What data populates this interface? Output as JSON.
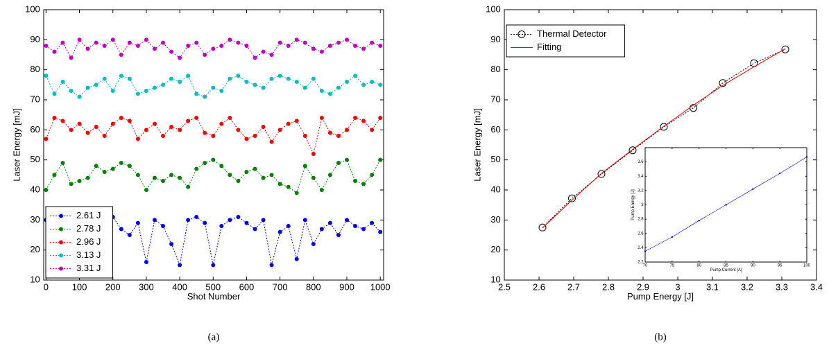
{
  "chart_data": [
    {
      "type": "line",
      "caption": "(a)",
      "x_label": "Shot Number",
      "y_label": "Laser Energy [mJ]",
      "xlim": [
        -7,
        1010
      ],
      "ylim": [
        10,
        100
      ],
      "xticks": [
        0,
        100,
        200,
        300,
        400,
        500,
        600,
        700,
        800,
        900,
        1000
      ],
      "yticks": [
        10,
        20,
        30,
        40,
        50,
        60,
        70,
        80,
        90,
        100
      ],
      "legend": "lower left",
      "x": [
        0,
        25,
        50,
        75,
        100,
        125,
        150,
        175,
        200,
        225,
        250,
        275,
        300,
        325,
        350,
        375,
        400,
        425,
        450,
        475,
        500,
        525,
        550,
        575,
        600,
        625,
        650,
        675,
        700,
        725,
        750,
        775,
        800,
        825,
        850,
        875,
        900,
        925,
        950,
        975,
        1000
      ],
      "series": [
        {
          "name": "2.61 J",
          "color": "#0000ff",
          "dash": true,
          "marker": "dot",
          "values": [
            30,
            16,
            28,
            29,
            26,
            30,
            28,
            29,
            31,
            27,
            25,
            29,
            16,
            30,
            28,
            22,
            15,
            30,
            31,
            29,
            15,
            28,
            30,
            31,
            29,
            27,
            30,
            15,
            26,
            28,
            17,
            30,
            22,
            27,
            29,
            25,
            30,
            28,
            27,
            29,
            26
          ]
        },
        {
          "name": "2.78 J",
          "color": "#008000",
          "dash": true,
          "marker": "dot",
          "values": [
            40,
            45,
            49,
            42,
            43,
            44,
            48,
            46,
            47,
            49,
            48,
            45,
            40,
            44,
            43,
            45,
            44,
            41,
            47,
            49,
            50,
            48,
            45,
            43,
            46,
            47,
            44,
            45,
            42,
            41,
            39,
            48,
            44,
            40,
            45,
            49,
            50,
            43,
            42,
            45,
            50
          ]
        },
        {
          "name": "2.96 J",
          "color": "#ff0000",
          "dash": true,
          "marker": "dot",
          "values": [
            57,
            64,
            63,
            60,
            62,
            59,
            61,
            58,
            62,
            64,
            63,
            57,
            60,
            62,
            58,
            61,
            60,
            63,
            64,
            59,
            58,
            62,
            64,
            60,
            57,
            58,
            61,
            56,
            60,
            62,
            63,
            58,
            52,
            64,
            59,
            58,
            60,
            64,
            63,
            60,
            64
          ]
        },
        {
          "name": "3.13 J",
          "color": "#00bfbf",
          "dash": true,
          "marker": "dot",
          "values": [
            78,
            72,
            76,
            73,
            71,
            74,
            75,
            77,
            73,
            78,
            77,
            72,
            73,
            74,
            75,
            77,
            76,
            78,
            72,
            71,
            74,
            73,
            77,
            78,
            76,
            75,
            74,
            77,
            78,
            77,
            76,
            74,
            77,
            73,
            72,
            74,
            76,
            78,
            75,
            76,
            75
          ]
        },
        {
          "name": "3.31 J",
          "color": "#bf00bf",
          "dash": true,
          "marker": "dot",
          "values": [
            88,
            86,
            89,
            84,
            90,
            87,
            89,
            88,
            90,
            85,
            89,
            88,
            90,
            87,
            89,
            86,
            84,
            88,
            89,
            85,
            87,
            88,
            90,
            89,
            88,
            84,
            86,
            85,
            89,
            88,
            90,
            89,
            87,
            86,
            88,
            89,
            90,
            88,
            87,
            89,
            88
          ]
        }
      ]
    },
    {
      "type": "line",
      "caption": "(b)",
      "x_label": "Pump Energy [J]",
      "y_label": "Laser Energy [mJ]",
      "xlim": [
        2.5,
        3.4
      ],
      "ylim": [
        10,
        100
      ],
      "xticks": [
        2.5,
        2.6,
        2.7,
        2.8,
        2.9,
        3,
        3.1,
        3.2,
        3.3,
        3.4
      ],
      "yticks": [
        10,
        20,
        30,
        40,
        50,
        60,
        70,
        80,
        90,
        100
      ],
      "legend": "upper left",
      "x": [
        2.61,
        2.695,
        2.78,
        2.87,
        2.96,
        3.045,
        3.13,
        3.22,
        3.31
      ],
      "series": [
        {
          "name": "Thermal Detector",
          "color": "#000000",
          "dash": true,
          "marker": "open-circle",
          "values": [
            27.5,
            37.2,
            45.3,
            53.2,
            61,
            67.3,
            75.6,
            82.2,
            86.8
          ]
        },
        {
          "name": "Fitting",
          "color": "#ff0000",
          "dash": false,
          "marker": "none",
          "values": [
            27.3,
            36.6,
            45.5,
            53.5,
            61.2,
            68.2,
            74.8,
            81,
            87
          ]
        }
      ]
    },
    {
      "type": "line",
      "x_label": "Pump Current [A]",
      "y_label": "Pump Energy [J]",
      "xlim": [
        70,
        100
      ],
      "ylim": [
        2.2,
        3.8
      ],
      "xticks": [
        70,
        75,
        80,
        85,
        90,
        95,
        100
      ],
      "yticks": [
        2.2,
        2.4,
        2.6,
        2.8,
        3,
        3.2,
        3.4,
        3.6
      ],
      "x": [
        70,
        75,
        80,
        85,
        90,
        95,
        100
      ],
      "series": [
        {
          "color": "#0000ff",
          "dash": false,
          "marker": "dot",
          "values": [
            2.35,
            2.55,
            2.78,
            3.0,
            3.22,
            3.44,
            3.67
          ]
        }
      ]
    }
  ]
}
